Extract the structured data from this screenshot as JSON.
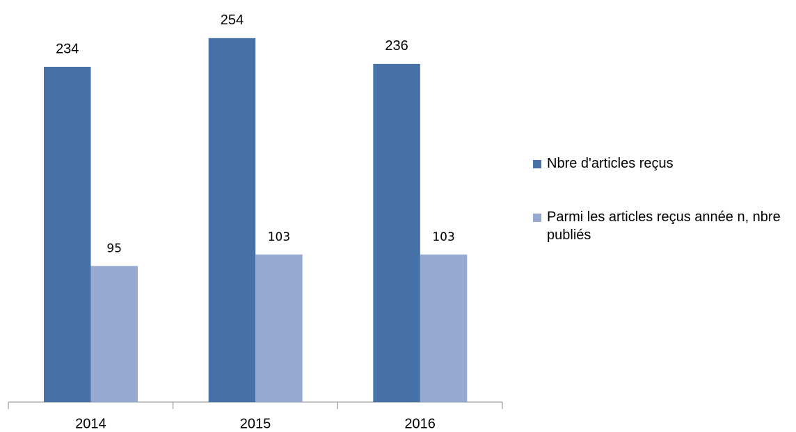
{
  "chart_data": {
    "type": "bar",
    "categories": [
      "2014",
      "2015",
      "2016"
    ],
    "series": [
      {
        "name": "Nbre d'articles reçus",
        "color": "#4672a8",
        "values": [
          234,
          254,
          236
        ]
      },
      {
        "name": "Parmi les articles reçus année n, nbre publiés",
        "color": "#95a9d1",
        "values": [
          95,
          103,
          103
        ]
      }
    ],
    "legend": "right"
  }
}
